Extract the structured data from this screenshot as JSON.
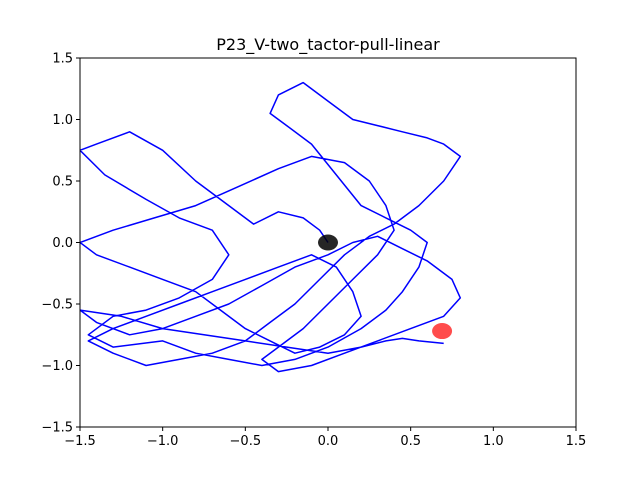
{
  "chart_data": {
    "type": "line",
    "title": "P23_V-two_tactor-pull-linear",
    "xlabel": "",
    "ylabel": "",
    "xlim": [
      -1.5,
      1.5
    ],
    "ylim": [
      -1.5,
      1.5
    ],
    "xticks": [
      -1.5,
      -1.0,
      -0.5,
      0.0,
      0.5,
      1.0,
      1.5
    ],
    "xtick_labels": [
      "−1.5",
      "−1.0",
      "−0.5",
      "0.0",
      "0.5",
      "1.0",
      "1.5"
    ],
    "yticks": [
      -1.5,
      -1.0,
      -0.5,
      0.0,
      0.5,
      1.0,
      1.5
    ],
    "ytick_labels": [
      "−1.5",
      "−1.0",
      "−0.5",
      "0.0",
      "0.5",
      "1.0",
      "1.5"
    ],
    "grid": false,
    "colors": {
      "path": "#0000ff",
      "start_marker": "#000000",
      "target_marker": "#ff0000"
    },
    "series": [
      {
        "type": "line",
        "x": [
          0.0,
          -0.05,
          -0.15,
          -0.3,
          -0.45,
          -0.6,
          -0.8,
          -1.0,
          -1.2,
          -1.4,
          -1.5,
          -1.35,
          -1.1,
          -0.9,
          -0.7,
          -0.6,
          -0.7,
          -0.9,
          -1.1,
          -1.3,
          -1.45,
          -1.3,
          -1.0,
          -0.8,
          -0.6,
          -0.4,
          -0.2,
          0.0,
          0.2,
          0.35,
          0.45,
          0.55,
          0.6,
          0.5,
          0.35,
          0.2,
          0.05,
          -0.1,
          -0.25,
          -0.35,
          -0.3,
          -0.15,
          0.0,
          0.15,
          0.3,
          0.45,
          0.6,
          0.7,
          0.8,
          0.7,
          0.55,
          0.4,
          0.25,
          0.1,
          -0.05,
          -0.2,
          -0.35,
          -0.5,
          -0.7,
          -0.9,
          -1.1,
          -1.3,
          -1.45,
          -1.3,
          -1.1,
          -0.9,
          -0.7,
          -0.5,
          -0.3,
          -0.1,
          0.05,
          0.15,
          0.2,
          0.1,
          -0.05,
          -0.2,
          -0.35,
          -0.5,
          -0.65,
          -0.8,
          -1.0,
          -1.2,
          -1.4,
          -1.5,
          -1.3,
          -1.05,
          -0.8,
          -0.55,
          -0.3,
          -0.1,
          0.1,
          0.25,
          0.35,
          0.4,
          0.3,
          0.15,
          0.0,
          -0.15,
          -0.3,
          -0.4,
          -0.3,
          -0.1,
          0.1,
          0.3,
          0.5,
          0.7,
          0.8,
          0.75,
          0.6,
          0.45,
          0.3,
          0.15,
          0.0,
          -0.2,
          -0.4,
          -0.6,
          -0.8,
          -1.0,
          -1.2,
          -1.4,
          -1.5,
          -1.25,
          -1.0,
          -0.75,
          -0.5,
          -0.25,
          0.0,
          0.2,
          0.35,
          0.45,
          0.55,
          0.7
        ],
        "y": [
          0.0,
          0.1,
          0.2,
          0.25,
          0.15,
          0.3,
          0.5,
          0.75,
          0.9,
          0.8,
          0.75,
          0.55,
          0.35,
          0.2,
          0.1,
          -0.1,
          -0.3,
          -0.45,
          -0.55,
          -0.6,
          -0.75,
          -0.85,
          -0.8,
          -0.9,
          -0.95,
          -1.0,
          -0.95,
          -0.85,
          -0.7,
          -0.55,
          -0.4,
          -0.2,
          0.0,
          0.1,
          0.2,
          0.3,
          0.55,
          0.8,
          0.95,
          1.05,
          1.2,
          1.3,
          1.15,
          1.0,
          0.95,
          0.9,
          0.85,
          0.8,
          0.7,
          0.5,
          0.3,
          0.15,
          0.05,
          -0.1,
          -0.3,
          -0.5,
          -0.65,
          -0.8,
          -0.9,
          -0.95,
          -1.0,
          -0.9,
          -0.8,
          -0.7,
          -0.6,
          -0.5,
          -0.4,
          -0.3,
          -0.2,
          -0.1,
          -0.2,
          -0.4,
          -0.6,
          -0.75,
          -0.85,
          -0.9,
          -0.8,
          -0.7,
          -0.55,
          -0.4,
          -0.3,
          -0.2,
          -0.1,
          0.0,
          0.1,
          0.2,
          0.3,
          0.45,
          0.6,
          0.7,
          0.65,
          0.5,
          0.3,
          0.1,
          -0.1,
          -0.3,
          -0.5,
          -0.7,
          -0.85,
          -0.95,
          -1.05,
          -1.0,
          -0.9,
          -0.8,
          -0.7,
          -0.6,
          -0.45,
          -0.3,
          -0.15,
          -0.05,
          0.05,
          0.0,
          -0.1,
          -0.2,
          -0.35,
          -0.5,
          -0.6,
          -0.7,
          -0.75,
          -0.65,
          -0.55,
          -0.6,
          -0.7,
          -0.75,
          -0.8,
          -0.85,
          -0.9,
          -0.85,
          -0.8,
          -0.78,
          -0.8,
          -0.82
        ]
      }
    ],
    "markers": [
      {
        "x": 0.0,
        "y": 0.0,
        "color": "#000000"
      },
      {
        "x": 0.69,
        "y": -0.72,
        "color": "#ff0000"
      }
    ]
  }
}
